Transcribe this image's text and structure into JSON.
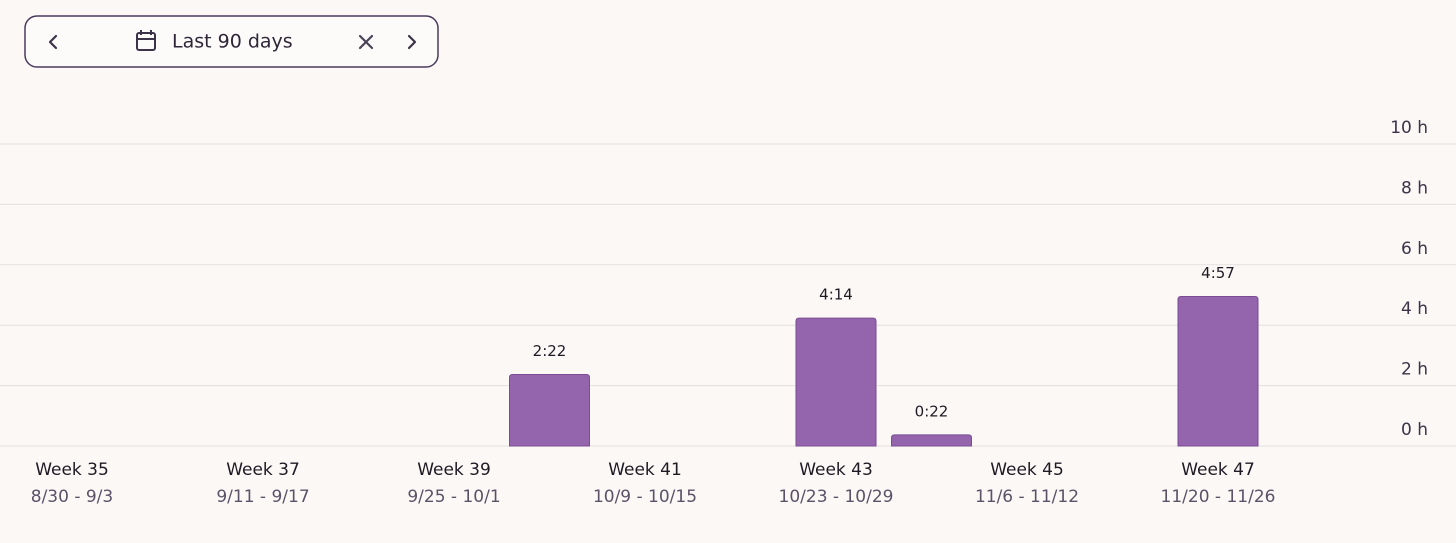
{
  "toolbar": {
    "label": "Last 90 days"
  },
  "chart_data": {
    "type": "bar",
    "categories": [
      "Week 35",
      null,
      "Week 37",
      null,
      "Week 39",
      null,
      "Week 41",
      null,
      "Week 43",
      null,
      "Week 45",
      null,
      "Week 47"
    ],
    "date_ranges": [
      "8/30 - 9/3",
      null,
      "9/11 - 9/17",
      null,
      "9/25 - 10/1",
      null,
      "10/9 - 10/15",
      null,
      "10/23 - 10/29",
      null,
      "11/6 - 11/12",
      null,
      "11/20 - 11/26"
    ],
    "values": [
      0,
      0,
      0,
      0,
      0,
      2.3667,
      0,
      0,
      4.2333,
      0.3667,
      0,
      0,
      4.95
    ],
    "value_labels": [
      null,
      null,
      null,
      null,
      null,
      "2:22",
      null,
      null,
      "4:14",
      "0:22",
      null,
      null,
      "4:57"
    ],
    "color": "#9464ad",
    "ylim": [
      0,
      10
    ],
    "yticks": [
      {
        "value": 0,
        "label": "0 h"
      },
      {
        "value": 2,
        "label": "2 h"
      },
      {
        "value": 4,
        "label": "4 h"
      },
      {
        "value": 6,
        "label": "6 h"
      },
      {
        "value": 8,
        "label": "8 h"
      },
      {
        "value": 10,
        "label": "10 h"
      }
    ],
    "grid": true
  }
}
